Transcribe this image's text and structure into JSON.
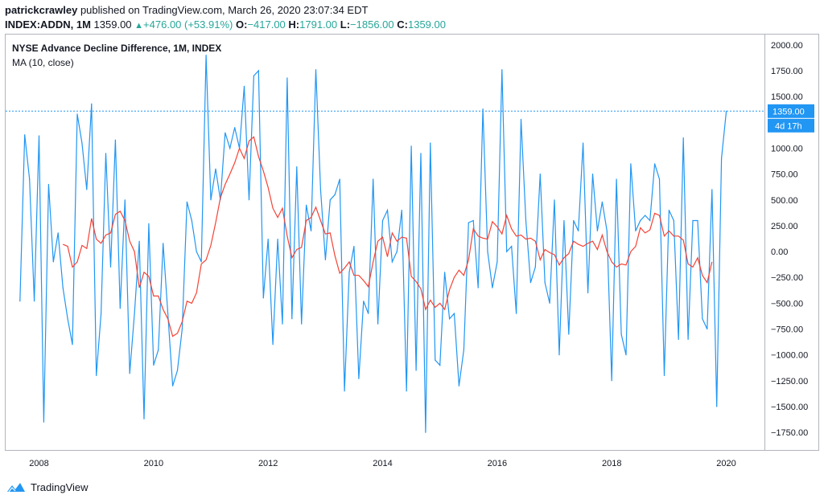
{
  "header": {
    "author": "patrickcrawley",
    "published": " published on TradingView.com, March 26, 2020 23:07:34 EDT",
    "symbol": "INDEX:ADDN, 1M",
    "last": "1359.00",
    "change": "+476.00 (+53.91%)",
    "o_label": "O:",
    "o_val": "−417.00",
    "h_label": "H:",
    "h_val": "1791.00",
    "l_label": "L:",
    "l_val": "−1856.00",
    "c_label": "C:",
    "c_val": "1359.00"
  },
  "legend": {
    "title": "NYSE Advance Decline Difference, 1M, INDEX",
    "ma": "MA (10, close)"
  },
  "price_badge": {
    "value": "1359.00",
    "countdown": "4d 17h"
  },
  "footer": {
    "brand": "TradingView"
  },
  "colors": {
    "series": "#2196f3",
    "ma": "#f44336",
    "badge": "#2196f3"
  },
  "chart_data": {
    "type": "line",
    "title": "NYSE Advance Decline Difference, 1M, INDEX",
    "x_start": "2007-09",
    "x_tick_labels": [
      "2008",
      "2010",
      "2012",
      "2014",
      "2016",
      "2018",
      "2020"
    ],
    "y_tick_labels": [
      "2000.00",
      "1750.00",
      "1500.00",
      "1250.00",
      "1000.00",
      "750.00",
      "500.00",
      "250.00",
      "0.00",
      "−250.00",
      "−500.00",
      "−750.00",
      "−1000.00",
      "−1250.00",
      "−1500.00",
      "−1750.00"
    ],
    "y_ticks": [
      2000,
      1750,
      1500,
      1250,
      1000,
      750,
      500,
      250,
      0,
      -250,
      -500,
      -750,
      -1000,
      -1250,
      -1500,
      -1750
    ],
    "ylim": [
      -1920,
      2100
    ],
    "xlim": [
      "2007-06",
      "2020-09"
    ],
    "last_value": 1359,
    "series": [
      {
        "name": "NYSE Advance Decline Difference",
        "values": [
          -480,
          1130,
          700,
          -480,
          1120,
          -1650,
          650,
          -100,
          180,
          -350,
          -650,
          -900,
          1330,
          1050,
          600,
          1430,
          -1200,
          -600,
          950,
          -150,
          1080,
          -550,
          500,
          -1180,
          -600,
          100,
          -1620,
          270,
          -1100,
          -950,
          80,
          -600,
          -1300,
          -1150,
          -750,
          480,
          300,
          0,
          -100,
          1900,
          500,
          800,
          500,
          1150,
          1000,
          1200,
          1000,
          1600,
          500,
          1700,
          1750,
          -450,
          120,
          -900,
          120,
          -700,
          1680,
          -650,
          820,
          -700,
          450,
          200,
          1760,
          600,
          -80,
          500,
          550,
          700,
          -1350,
          -200,
          50,
          -1230,
          -480,
          -600,
          700,
          -700,
          300,
          400,
          -100,
          0,
          400,
          -1350,
          1020,
          -1150,
          950,
          -1750,
          1050,
          -1050,
          -1100,
          -200,
          -650,
          -600,
          -1300,
          -950,
          280,
          300,
          -350,
          1380,
          0,
          -350,
          -100,
          1760,
          0,
          50,
          -600,
          1280,
          300,
          -300,
          -150,
          750,
          -300,
          -500,
          500,
          -1000,
          300,
          -800,
          300,
          200,
          1050,
          -400,
          750,
          200,
          480,
          200,
          -1250,
          700,
          -800,
          -1000,
          850,
          200,
          300,
          350,
          300,
          850,
          700,
          -1200,
          400,
          300,
          -850,
          1100,
          -850,
          300,
          300,
          -650,
          -750,
          600,
          -1500,
          900,
          1359
        ]
      },
      {
        "name": "MA (10, close)",
        "start_index": 9,
        "values": [
          70,
          50,
          -150,
          -100,
          60,
          30,
          320,
          120,
          80,
          160,
          180,
          360,
          390,
          300,
          100,
          0,
          -350,
          -200,
          -240,
          -430,
          -430,
          -560,
          -650,
          -820,
          -790,
          -680,
          -480,
          -500,
          -400,
          -120,
          -80,
          60,
          280,
          520,
          650,
          750,
          860,
          1000,
          900,
          1070,
          1110,
          920,
          780,
          620,
          420,
          330,
          420,
          150,
          -60,
          20,
          40,
          300,
          330,
          430,
          300,
          170,
          180,
          -40,
          -210,
          -160,
          -100,
          -230,
          -230,
          -280,
          -340,
          -100,
          100,
          140,
          -50,
          180,
          100,
          140,
          130,
          -240,
          -290,
          -360,
          -560,
          -470,
          -540,
          -500,
          -560,
          -370,
          -250,
          -180,
          -230,
          -80,
          220,
          150,
          130,
          120,
          290,
          240,
          170,
          350,
          220,
          150,
          160,
          120,
          130,
          100,
          -80,
          20,
          -10,
          -30,
          -130,
          -60,
          -20,
          100,
          70,
          50,
          80,
          100,
          20,
          160,
          0,
          -100,
          -150,
          -120,
          -130,
          0,
          50,
          230,
          180,
          210,
          370,
          350,
          150,
          200,
          150,
          150,
          110,
          -120,
          -150,
          -60,
          -230,
          -300,
          -100
        ]
      }
    ]
  }
}
